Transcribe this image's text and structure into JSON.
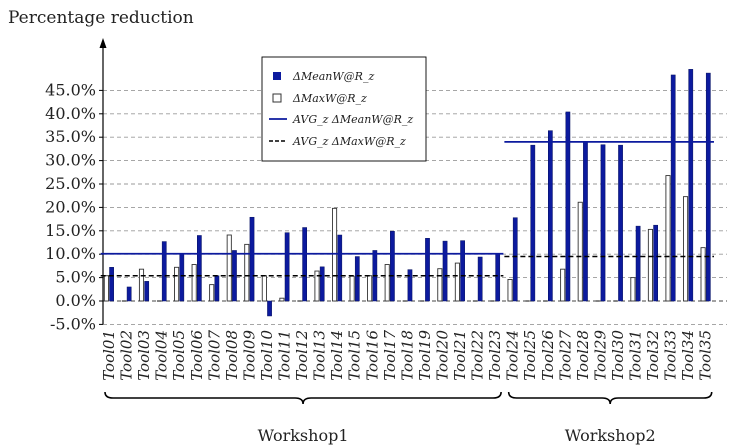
{
  "chart_data": {
    "type": "bar",
    "ylabel": "Percentage reduction",
    "ylim": [
      -5,
      50
    ],
    "yticks": [
      -5,
      0,
      5,
      10,
      15,
      20,
      25,
      30,
      35,
      40,
      45
    ],
    "ytick_labels": [
      "-5.0%",
      "0.0%",
      "5.0%",
      "10.0%",
      "15.0%",
      "20.0%",
      "25.0%",
      "30.0%",
      "35.0%",
      "40.0%",
      "45.0%"
    ],
    "grid": true,
    "legend_position": "top-center",
    "categories": [
      "Tool01",
      "Tool02",
      "Tool03",
      "Tool04",
      "Tool05",
      "Tool06",
      "Tool07",
      "Tool08",
      "Tool09",
      "Tool10",
      "Tool11",
      "Tool12",
      "Tool13",
      "Tool14",
      "Tool15",
      "Tool16",
      "Tool17",
      "Tool18",
      "Tool19",
      "Tool20",
      "Tool21",
      "Tool22",
      "Tool23",
      "Tool24",
      "Tool25",
      "Tool26",
      "Tool27",
      "Tool28",
      "Tool29",
      "Tool30",
      "Tool31",
      "Tool32",
      "Tool33",
      "Tool34",
      "Tool35"
    ],
    "series": [
      {
        "name": "ΔMeanW@R_z",
        "color": "#0c1a9e",
        "values": [
          7.2,
          3.0,
          4.2,
          12.7,
          10.1,
          14.0,
          5.4,
          10.8,
          17.9,
          -3.2,
          14.6,
          15.7,
          7.3,
          14.1,
          9.5,
          10.8,
          14.9,
          6.7,
          13.4,
          12.8,
          12.9,
          9.4,
          10.0,
          17.8,
          33.3,
          36.4,
          40.4,
          34.0,
          33.4,
          33.3,
          16.0,
          16.2,
          48.3,
          49.5,
          48.7
        ]
      },
      {
        "name": "ΔMaxW@R_z",
        "color": "#ffffff",
        "values": [
          5.4,
          0.0,
          6.8,
          0.0,
          7.2,
          7.8,
          3.5,
          14.1,
          12.1,
          5.4,
          0.6,
          0.0,
          6.4,
          19.8,
          5.3,
          5.4,
          7.8,
          0.0,
          0.0,
          6.9,
          8.1,
          0.0,
          0.0,
          4.6,
          0.0,
          0.0,
          6.8,
          21.1,
          0.0,
          0.0,
          5.0,
          15.3,
          26.8,
          22.3,
          11.4
        ]
      }
    ],
    "averages": [
      {
        "name": "AVG_z ΔMeanW@R_z",
        "style": "solid",
        "color": "#0c1a9e",
        "segments": [
          {
            "from": "Tool01",
            "to": "Tool23",
            "value": 10.1
          },
          {
            "from": "Tool24",
            "to": "Tool35",
            "value": 34.0
          }
        ]
      },
      {
        "name": "AVG_z ΔMaxW@R_z",
        "style": "dashed",
        "color": "#000000",
        "segments": [
          {
            "from": "Tool01",
            "to": "Tool23",
            "value": 5.4
          },
          {
            "from": "Tool24",
            "to": "Tool35",
            "value": 9.5
          }
        ]
      }
    ],
    "groups": [
      {
        "label": "Workshop1",
        "from": "Tool01",
        "to": "Tool23"
      },
      {
        "label": "Workshop2",
        "from": "Tool24",
        "to": "Tool35"
      }
    ],
    "legend": [
      {
        "label": "ΔMeanW@R_z",
        "kind": "filled-square"
      },
      {
        "label": "ΔMaxW@R_z",
        "kind": "hollow-square"
      },
      {
        "label": "AVG_z ΔMeanW@R_z",
        "kind": "solid-line"
      },
      {
        "label": "AVG_z ΔMaxW@R_z",
        "kind": "dashed-line"
      }
    ]
  }
}
